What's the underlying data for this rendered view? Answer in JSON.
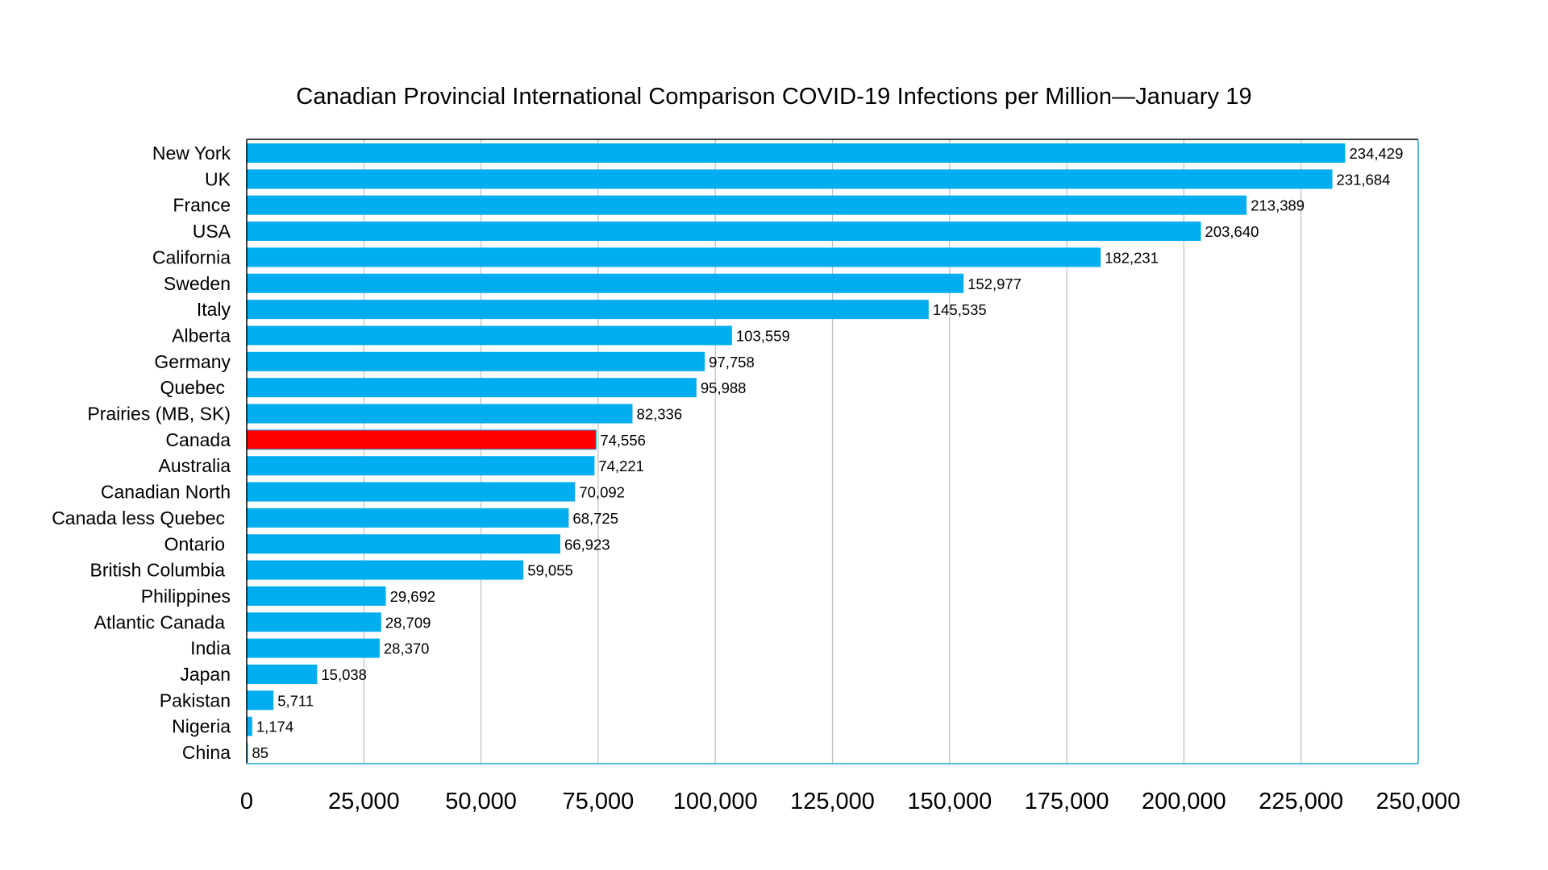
{
  "chart_data": {
    "type": "bar",
    "orientation": "horizontal",
    "title": "Canadian Provincial International Comparison COVID-19 Infections per Million—January 19",
    "xlabel": "",
    "ylabel": "",
    "xlim": [
      0,
      250000
    ],
    "x_ticks": [
      0,
      25000,
      50000,
      75000,
      100000,
      125000,
      150000,
      175000,
      200000,
      225000,
      250000
    ],
    "x_tick_labels": [
      "0",
      "25,000",
      "50,000",
      "75,000",
      "100,000",
      "125,000",
      "150,000",
      "175,000",
      "200,000",
      "225,000",
      "250,000"
    ],
    "grid": "vertical",
    "legend": "none",
    "colors": {
      "default_bar": "#00AEEF",
      "highlight_bar": "#FF0000",
      "grid": "#BDBDBD",
      "frame": "#1AA3DC"
    },
    "highlight": "Canada",
    "categories": [
      "New York",
      "UK",
      "France",
      "USA",
      "California",
      "Sweden",
      "Italy",
      "Alberta",
      "Germany",
      "Quebec ",
      "Prairies (MB, SK)",
      "Canada",
      "Australia",
      "Canadian North",
      "Canada less Quebec ",
      "Ontario ",
      "British Columbia ",
      "Philippines",
      "Atlantic Canada ",
      "India",
      "Japan",
      "Pakistan",
      "Nigeria",
      "China"
    ],
    "values": [
      234429,
      231684,
      213389,
      203640,
      182231,
      152977,
      145535,
      103559,
      97758,
      95988,
      82336,
      74556,
      74221,
      70092,
      68725,
      66923,
      59055,
      29692,
      28709,
      28370,
      15038,
      5711,
      1174,
      85
    ],
    "value_labels": [
      "234,429",
      "231,684",
      "213,389",
      "203,640",
      "182,231",
      "152,977",
      "145,535",
      "103,559",
      "97,758",
      "95,988",
      "82,336",
      "74,556",
      "74,221",
      "70,092",
      "68,725",
      "66,923",
      "59,055",
      "29,692",
      "28,709",
      "28,370",
      "15,038",
      "5,711",
      "1,174",
      "85"
    ]
  }
}
